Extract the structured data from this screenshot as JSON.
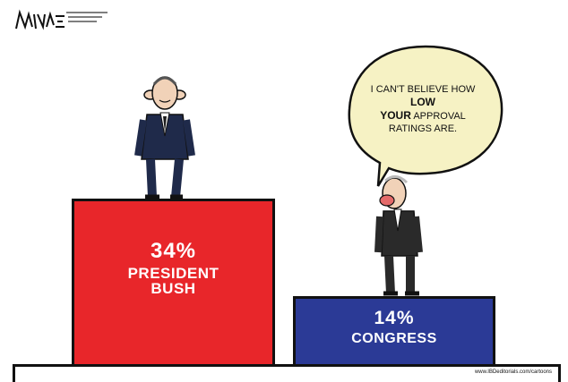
{
  "cartoonist_signature": "RAMIREZ",
  "speech_bubble": {
    "part1": "I CAN'T BELIEVE HOW",
    "emph1": "LOW",
    "emph2": "YOUR",
    "part2": "APPROVAL RATINGS ARE."
  },
  "podium_bush": {
    "percent": "34%",
    "label": "PRESIDENT BUSH",
    "color": "#e8262a"
  },
  "podium_congress": {
    "percent": "14%",
    "label": "CONGRESS",
    "color": "#2b3a96"
  },
  "credit": "www.IBDeditorials.com/cartoons"
}
